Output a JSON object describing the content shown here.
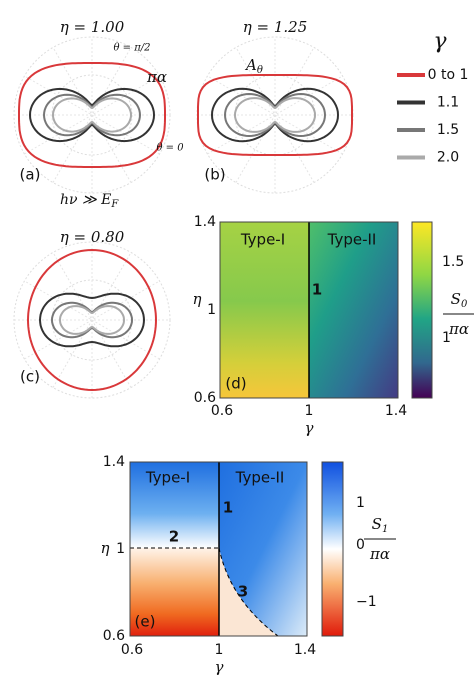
{
  "panels": {
    "a": {
      "title": "η = 1.00",
      "label": "(a)",
      "theta_top": "θ = π/2",
      "theta_right": "θ = 0",
      "alpha": "πα",
      "condition": "hν ≫ E",
      "condition_sub": "F"
    },
    "b": {
      "title": "η = 1.25",
      "label": "(b)",
      "curve": "A",
      "curve_sub": "θ"
    },
    "c": {
      "title": "η = 0.80",
      "label": "(c)"
    },
    "d": {
      "label": "(d)",
      "regions": [
        "Type-I",
        "Type-II"
      ],
      "line_label": "1",
      "xticks": [
        "0.6",
        "1",
        "1.4"
      ],
      "yticks": [
        "1.4",
        "1",
        "0.6"
      ],
      "xlabel": "γ",
      "ylabel": "η",
      "colorbar_ticks": [
        "1.5",
        "1"
      ],
      "colorbar_symbol": "S",
      "colorbar_sub": "0",
      "colorbar_denominator": "πα"
    },
    "e": {
      "label": "(e)",
      "regions": [
        "Type-I",
        "Type-II"
      ],
      "line_labels": [
        "1",
        "2",
        "3"
      ],
      "xticks": [
        "0.6",
        "1",
        "1.4"
      ],
      "yticks": [
        "1.4",
        "1",
        "0.6"
      ],
      "xlabel": "γ",
      "ylabel": "η",
      "colorbar_ticks": [
        "1",
        "0",
        "−1"
      ],
      "colorbar_symbol": "S",
      "colorbar_sub": "1",
      "colorbar_denominator": "πα"
    }
  },
  "legend": {
    "title": "γ",
    "entries": [
      {
        "name": "0 to 1",
        "color": "#d9383a"
      },
      {
        "name": "1.1",
        "color": "#333333"
      },
      {
        "name": "1.5",
        "color": "#777777"
      },
      {
        "name": "2.0",
        "color": "#aaaaaa"
      }
    ]
  }
}
